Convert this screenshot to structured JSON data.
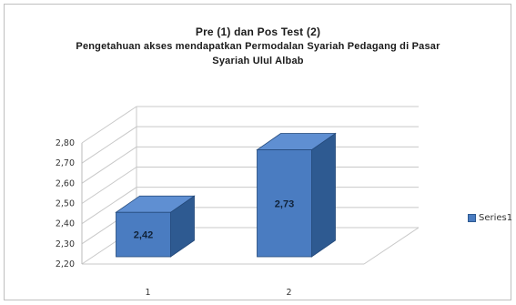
{
  "chart_data": {
    "type": "bar",
    "title_lines": [
      "Pre (1) dan Pos Test (2)",
      "Pengetahuan  akses mendapatkan  Permodalan  Syariah  Pedagang  di Pasar",
      "Syariah  Ulul  Albab"
    ],
    "categories": [
      "1",
      "2"
    ],
    "series": [
      {
        "name": "Series1",
        "values": [
          2.42,
          2.73
        ],
        "data_labels": [
          "2,42",
          "2,73"
        ]
      }
    ],
    "ylim": [
      2.2,
      2.8
    ],
    "y_ticks": [
      "2,20",
      "2,30",
      "2,40",
      "2,50",
      "2,60",
      "2,70",
      "2,80"
    ],
    "grid": true,
    "legend": "right",
    "style": "3d-column",
    "colors": {
      "bar_front": "#4a7cc1",
      "bar_side": "#2e5a91",
      "bar_top": "#5f8fd2"
    }
  }
}
